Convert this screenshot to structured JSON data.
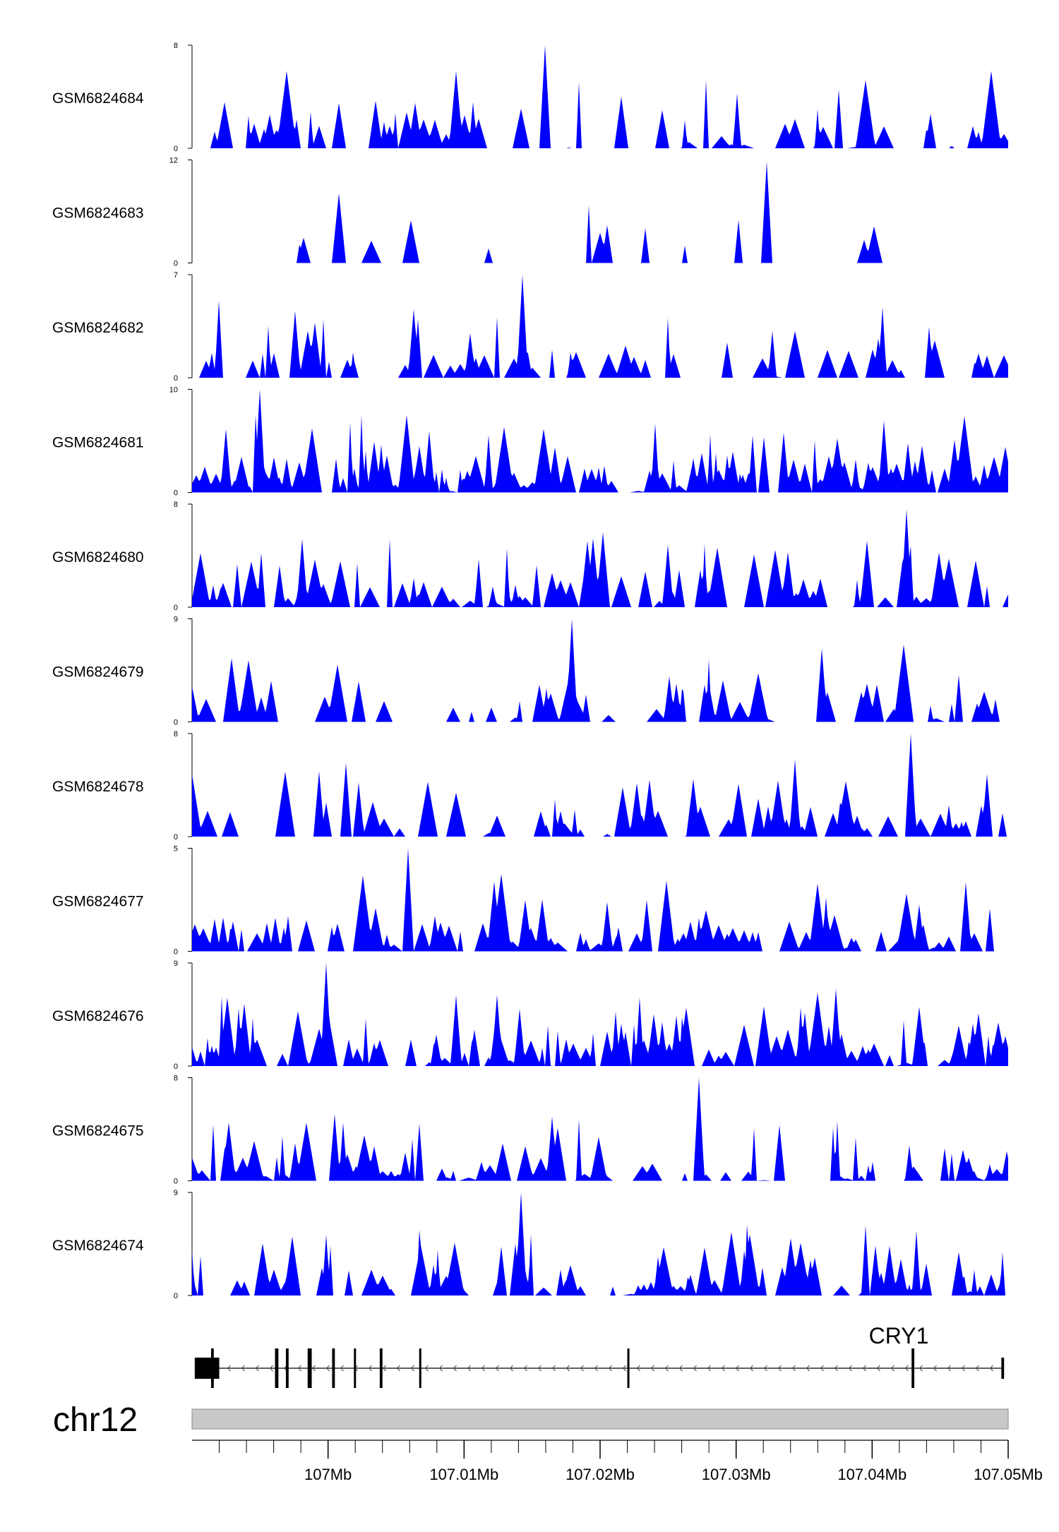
{
  "chart_data": {
    "type": "area",
    "chromosome": "chr12",
    "x_range_bp": [
      106990000,
      107050000
    ],
    "genome_axis": {
      "ticks_bp": [
        107000000,
        107010000,
        107020000,
        107030000,
        107040000,
        107050000
      ],
      "tick_labels": [
        "107Mb",
        "107.01Mb",
        "107.02Mb",
        "107.03Mb",
        "107.04Mb",
        "107.05Mb"
      ]
    },
    "gene": {
      "name": "CRY1",
      "strand": "-",
      "exons_bp": [
        [
          106991400,
          106991600
        ],
        [
          106990200,
          106992000
        ],
        [
          106996100,
          106996350
        ],
        [
          106996900,
          106997100
        ],
        [
          106998500,
          106998800
        ],
        [
          107000300,
          107000500
        ],
        [
          107001900,
          107002000
        ],
        [
          107003800,
          107004000
        ],
        [
          107006700,
          107006800
        ],
        [
          107022000,
          107022100
        ],
        [
          107042900,
          107043100
        ],
        [
          107049500,
          107049700
        ]
      ],
      "intron_range_bp": [
        106992000,
        107049500
      ]
    },
    "series": [
      {
        "name": "GSM6824684",
        "ylim": [
          0,
          8
        ],
        "peak_x_bp": 107016000,
        "peak_y": 8,
        "density": 0.55,
        "baseline_y": 2.2
      },
      {
        "name": "GSM6824683",
        "ylim": [
          0,
          12
        ],
        "peak_x_bp": 107032200,
        "peak_y": 11.8,
        "density": 0.2,
        "baseline_y": 3.5
      },
      {
        "name": "GSM6824682",
        "ylim": [
          0,
          7
        ],
        "peak_x_bp": 107014300,
        "peak_y": 7,
        "density": 0.7,
        "baseline_y": 1.6
      },
      {
        "name": "GSM6824681",
        "ylim": [
          0,
          10
        ],
        "peak_x_bp": 106995000,
        "peak_y": 10,
        "density": 0.9,
        "baseline_y": 2.5
      },
      {
        "name": "GSM6824680",
        "ylim": [
          0,
          8
        ],
        "peak_x_bp": 107042500,
        "peak_y": 7.6,
        "density": 0.7,
        "baseline_y": 1.7
      },
      {
        "name": "GSM6824679",
        "ylim": [
          0,
          9
        ],
        "peak_x_bp": 107017900,
        "peak_y": 9,
        "density": 0.6,
        "baseline_y": 2.0
      },
      {
        "name": "GSM6824678",
        "ylim": [
          0,
          8
        ],
        "peak_x_bp": 107042800,
        "peak_y": 8,
        "density": 0.6,
        "baseline_y": 1.8
      },
      {
        "name": "GSM6824677",
        "ylim": [
          0,
          5
        ],
        "peak_x_bp": 107005900,
        "peak_y": 5,
        "density": 0.75,
        "baseline_y": 1.3
      },
      {
        "name": "GSM6824676",
        "ylim": [
          0,
          9
        ],
        "peak_x_bp": 106999900,
        "peak_y": 9,
        "density": 0.85,
        "baseline_y": 2.4
      },
      {
        "name": "GSM6824675",
        "ylim": [
          0,
          8
        ],
        "peak_x_bp": 107027300,
        "peak_y": 8,
        "density": 0.7,
        "baseline_y": 0.5
      },
      {
        "name": "GSM6824674",
        "ylim": [
          0,
          9
        ],
        "peak_x_bp": 107014200,
        "peak_y": 9,
        "density": 0.75,
        "baseline_y": 1.1
      }
    ]
  },
  "colors": {
    "track_fill": "#0000ff",
    "ideogram_fill": "#c8c8c8",
    "ideogram_stroke": "#888888",
    "axis": "#000000"
  }
}
